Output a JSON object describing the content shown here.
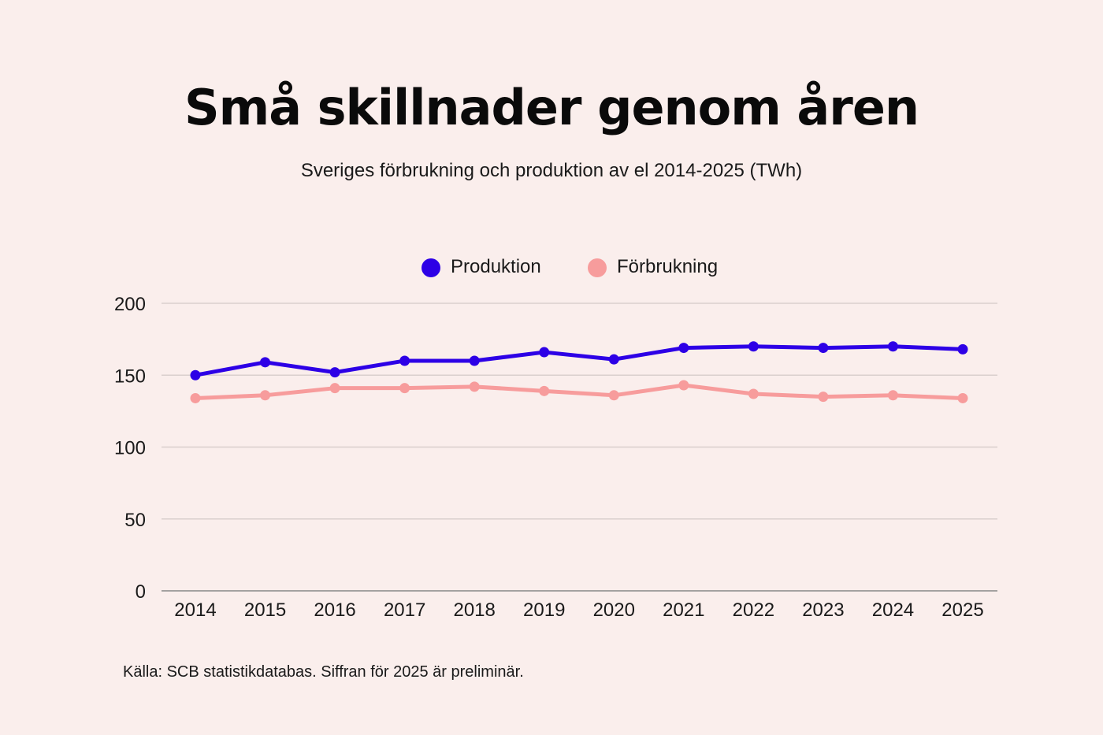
{
  "title": "Små skillnader genom åren",
  "subtitle": "Sveriges förbrukning och produktion av el 2014-2025 (TWh)",
  "source": "Källa: SCB statistikdatabas. Siffran för 2025 är preliminär.",
  "colors": {
    "background": "#faeeec",
    "produktion": "#2d00e6",
    "forbrukning": "#f79c9c",
    "grid": "#d9cfcd",
    "axis": "#888888"
  },
  "chart_data": {
    "type": "line",
    "title": "Små skillnader genom åren",
    "subtitle": "Sveriges förbrukning och produktion av el 2014-2025 (TWh)",
    "categories": [
      "2014",
      "2015",
      "2016",
      "2017",
      "2018",
      "2019",
      "2020",
      "2021",
      "2022",
      "2023",
      "2024",
      "2025"
    ],
    "series": [
      {
        "name": "Produktion",
        "color": "#2d00e6",
        "values": [
          150,
          159,
          152,
          160,
          160,
          166,
          161,
          169,
          170,
          169,
          170,
          168
        ]
      },
      {
        "name": "Förbrukning",
        "color": "#f79c9c",
        "values": [
          134,
          136,
          141,
          141,
          142,
          139,
          136,
          143,
          137,
          135,
          136,
          134
        ]
      }
    ],
    "yticks": [
      0,
      50,
      100,
      150,
      200
    ],
    "ylim": [
      0,
      200
    ],
    "xlabel": "",
    "ylabel": "",
    "grid": true,
    "legend_position": "top-center"
  }
}
